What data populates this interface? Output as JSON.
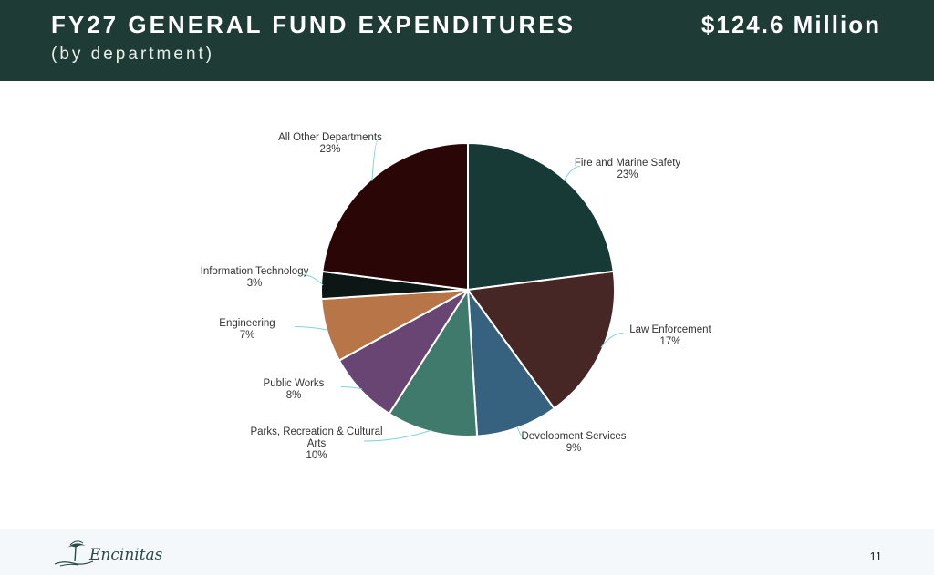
{
  "header": {
    "title": "FY27 GENERAL FUND EXPENDITURES",
    "subtitle": "(by department)",
    "amount": "$124.6 Million"
  },
  "footer": {
    "logo_text": "Encinitas",
    "page_number": "11"
  },
  "colors": {
    "header_bg": "#1f3b36",
    "leader_line": "#7fd4d8"
  },
  "chart_data": {
    "type": "pie",
    "title": "",
    "start_angle_deg": 0,
    "direction": "clockwise",
    "slices": [
      {
        "label": "Fire and Marine Safety",
        "value": 23,
        "display": "23%",
        "color": "#173a37"
      },
      {
        "label": "Law Enforcement",
        "value": 17,
        "display": "17%",
        "color": "#472626"
      },
      {
        "label": "Development Services",
        "value": 9,
        "display": "9%",
        "color": "#37627f"
      },
      {
        "label": "Parks, Recreation & Cultural Arts",
        "label_lines": [
          "Parks, Recreation & Cultural",
          "Arts"
        ],
        "value": 10,
        "display": "10%",
        "color": "#3f7a6c"
      },
      {
        "label": "Public Works",
        "value": 8,
        "display": "8%",
        "color": "#694573"
      },
      {
        "label": "Engineering",
        "value": 7,
        "display": "7%",
        "color": "#b87547"
      },
      {
        "label": "Information Technology",
        "value": 3,
        "display": "3%",
        "color": "#0c1614"
      },
      {
        "label": "All Other Departments",
        "value": 23,
        "display": "23%",
        "color": "#2a0606"
      }
    ]
  }
}
